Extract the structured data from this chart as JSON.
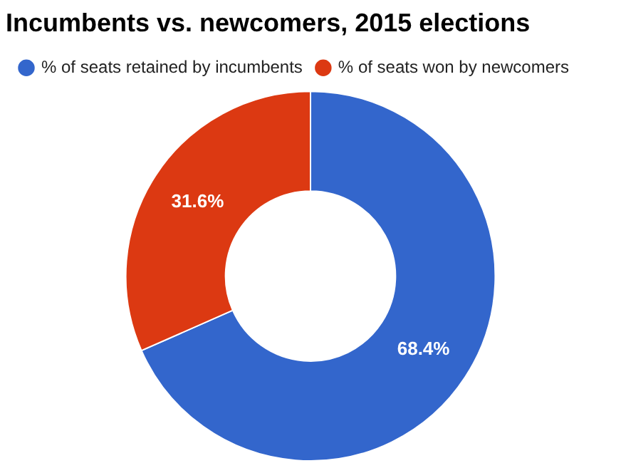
{
  "chart_data": {
    "type": "donut",
    "title": "Incumbents vs. newcomers, 2015 elections",
    "categories": [
      "% of seats retained by incumbents",
      "% of seats won by newcomers"
    ],
    "values": [
      68.4,
      31.6
    ],
    "colors": [
      "#3366cc",
      "#dc3912"
    ],
    "value_labels": [
      "68.4%",
      "31.6%"
    ],
    "legend": "top left"
  }
}
